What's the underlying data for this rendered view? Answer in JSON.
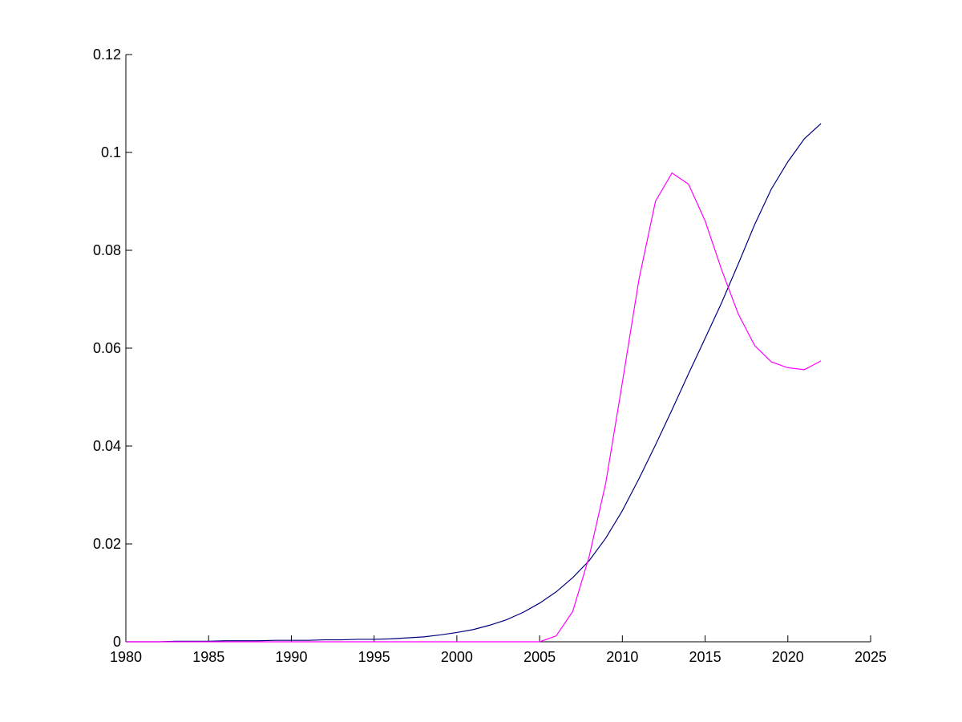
{
  "chart_data": {
    "type": "line",
    "x": [
      1980,
      1981,
      1982,
      1983,
      1984,
      1985,
      1986,
      1987,
      1988,
      1989,
      1990,
      1991,
      1992,
      1993,
      1994,
      1995,
      1996,
      1997,
      1998,
      1999,
      2000,
      2001,
      2002,
      2003,
      2004,
      2005,
      2006,
      2007,
      2008,
      2009,
      2010,
      2011,
      2012,
      2013,
      2014,
      2015,
      2016,
      2017,
      2018,
      2019,
      2020,
      2021,
      2022
    ],
    "series": [
      {
        "color": "#00007f",
        "values": [
          0,
          0,
          0,
          0.0001,
          0.0001,
          0.0001,
          0.0002,
          0.0002,
          0.0002,
          0.0003,
          0.0003,
          0.0003,
          0.0004,
          0.0004,
          0.0005,
          0.0005,
          0.0006,
          0.0008,
          0.001,
          0.0014,
          0.0019,
          0.0025,
          0.0034,
          0.0045,
          0.006,
          0.0079,
          0.0102,
          0.0131,
          0.0166,
          0.0212,
          0.0268,
          0.0333,
          0.0402,
          0.0474,
          0.0548,
          0.062,
          0.0693,
          0.0772,
          0.0853,
          0.0925,
          0.0981,
          0.1028,
          0.1059
        ]
      },
      {
        "color": "#ff00ff",
        "values": [
          0,
          0,
          0,
          0,
          0,
          0,
          0,
          0,
          0,
          0,
          0,
          0,
          0,
          0,
          0,
          0,
          0,
          0,
          0,
          0,
          0,
          0,
          0,
          0,
          0,
          0,
          0.0012,
          0.0062,
          0.0175,
          0.0325,
          0.053,
          0.074,
          0.09,
          0.0958,
          0.0935,
          0.086,
          0.076,
          0.067,
          0.0605,
          0.0572,
          0.056,
          0.0556,
          0.0574
        ]
      }
    ],
    "xlim": [
      1980,
      2025
    ],
    "xticks": [
      1980,
      1985,
      1990,
      1995,
      2000,
      2005,
      2010,
      2015,
      2020,
      2025
    ],
    "ylim": [
      0,
      0.12
    ],
    "yticks": [
      0,
      0.02,
      0.04,
      0.06,
      0.08,
      0.1,
      0.12
    ],
    "grid": false
  }
}
